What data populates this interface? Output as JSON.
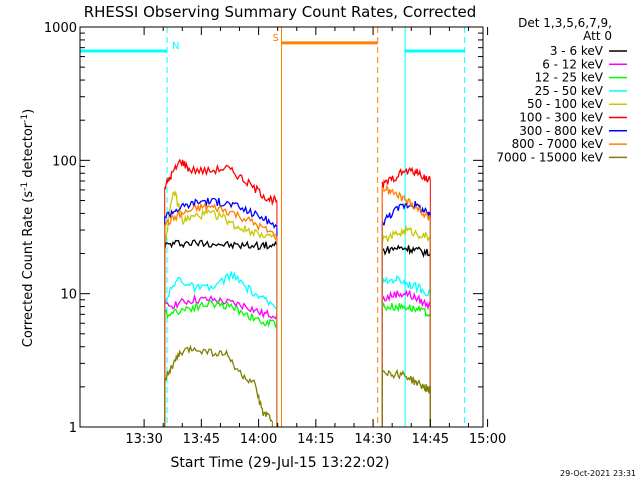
{
  "chart_data": {
    "type": "line",
    "title": "RHESSI Observing Summary Count Rates, Corrected",
    "xlabel": "Start Time (29-Jul-15 13:22:02)",
    "ylabel_main": "Corrected Count Rate (s",
    "ylabel_sup1": "-1",
    "ylabel_mid": " detector",
    "ylabel_sup2": "-1",
    "ylabel_end": ")",
    "yscale": "log",
    "ylim": [
      1,
      1000
    ],
    "xlim_minutes": [
      13.22,
      14.98
    ],
    "x_ticks": [
      "13:30",
      "13:45",
      "14:00",
      "14:15",
      "14:30",
      "14:45",
      "15:00"
    ],
    "x_tick_hours": [
      13.5,
      13.75,
      14.0,
      14.25,
      14.5,
      14.75,
      15.0
    ],
    "y_ticks": [
      "1",
      "10",
      "100",
      "1000"
    ],
    "y_tick_values": [
      1,
      10,
      100,
      1000
    ],
    "legend_header": [
      "Det 1,3,5,6,7,9,",
      "Att 0"
    ],
    "series": [
      {
        "name": "3 - 6 keV",
        "color": "#000000",
        "segments": [
          [
            [
              13.59,
              23
            ],
            [
              13.65,
              24
            ],
            [
              13.72,
              24
            ],
            [
              13.8,
              24
            ],
            [
              13.88,
              23
            ],
            [
              13.95,
              23
            ],
            [
              14.02,
              23
            ],
            [
              14.08,
              23
            ]
          ],
          [
            [
              14.54,
              21
            ],
            [
              14.6,
              22
            ],
            [
              14.65,
              22
            ],
            [
              14.7,
              21
            ],
            [
              14.75,
              20
            ]
          ]
        ]
      },
      {
        "name": "6 - 12 keV",
        "color": "#ff00ff",
        "segments": [
          [
            [
              13.59,
              8
            ],
            [
              13.65,
              8.5
            ],
            [
              13.72,
              9
            ],
            [
              13.8,
              9
            ],
            [
              13.88,
              8.5
            ],
            [
              13.95,
              8
            ],
            [
              14.02,
              7
            ],
            [
              14.08,
              7
            ]
          ],
          [
            [
              14.54,
              9
            ],
            [
              14.6,
              10
            ],
            [
              14.65,
              10
            ],
            [
              14.7,
              9
            ],
            [
              14.75,
              8
            ]
          ]
        ]
      },
      {
        "name": "12 - 25 keV",
        "color": "#00ff00",
        "segments": [
          [
            [
              13.59,
              7
            ],
            [
              13.65,
              7.5
            ],
            [
              13.72,
              8
            ],
            [
              13.8,
              8.5
            ],
            [
              13.88,
              8
            ],
            [
              13.95,
              7
            ],
            [
              14.02,
              6
            ],
            [
              14.08,
              6
            ]
          ],
          [
            [
              14.54,
              8
            ],
            [
              14.6,
              8
            ],
            [
              14.65,
              8
            ],
            [
              14.7,
              7.5
            ],
            [
              14.75,
              7
            ]
          ]
        ]
      },
      {
        "name": "25 - 50 keV",
        "color": "#00ffff",
        "segments": [
          [
            [
              13.59,
              9
            ],
            [
              13.65,
              13
            ],
            [
              13.72,
              11
            ],
            [
              13.8,
              11
            ],
            [
              13.88,
              14
            ],
            [
              13.95,
              11
            ],
            [
              14.02,
              9
            ],
            [
              14.08,
              8
            ]
          ],
          [
            [
              14.54,
              12
            ],
            [
              14.6,
              13
            ],
            [
              14.65,
              12
            ],
            [
              14.7,
              11
            ],
            [
              14.75,
              10
            ]
          ]
        ]
      },
      {
        "name": "50 - 100 keV",
        "color": "#c8c800",
        "segments": [
          [
            [
              13.59,
              24
            ],
            [
              13.63,
              60
            ],
            [
              13.67,
              35
            ],
            [
              13.72,
              38
            ],
            [
              13.78,
              40
            ],
            [
              13.84,
              38
            ],
            [
              13.9,
              32
            ],
            [
              13.95,
              30
            ],
            [
              14.02,
              28
            ],
            [
              14.08,
              26
            ]
          ],
          [
            [
              14.54,
              25
            ],
            [
              14.6,
              28
            ],
            [
              14.65,
              30
            ],
            [
              14.7,
              28
            ],
            [
              14.75,
              26
            ]
          ]
        ]
      },
      {
        "name": "100 - 300 keV",
        "color": "#ff0000",
        "segments": [
          [
            [
              13.59,
              63
            ],
            [
              13.62,
              78
            ],
            [
              13.66,
              100
            ],
            [
              13.7,
              85
            ],
            [
              13.78,
              83
            ],
            [
              13.86,
              88
            ],
            [
              13.92,
              75
            ],
            [
              13.98,
              62
            ],
            [
              14.04,
              52
            ],
            [
              14.08,
              50
            ]
          ],
          [
            [
              14.54,
              65
            ],
            [
              14.58,
              72
            ],
            [
              14.63,
              82
            ],
            [
              14.68,
              83
            ],
            [
              14.72,
              76
            ],
            [
              14.75,
              70
            ]
          ]
        ]
      },
      {
        "name": "300 - 800 keV",
        "color": "#0000ff",
        "segments": [
          [
            [
              13.59,
              38
            ],
            [
              13.64,
              43
            ],
            [
              13.7,
              47
            ],
            [
              13.76,
              50
            ],
            [
              13.82,
              49
            ],
            [
              13.88,
              47
            ],
            [
              13.95,
              42
            ],
            [
              14.02,
              37
            ],
            [
              14.08,
              32
            ]
          ],
          [
            [
              14.54,
              34
            ],
            [
              14.58,
              40
            ],
            [
              14.63,
              46
            ],
            [
              14.68,
              47
            ],
            [
              14.72,
              42
            ],
            [
              14.75,
              38
            ]
          ]
        ]
      },
      {
        "name": "800 - 7000 keV",
        "color": "#ff8000",
        "segments": [
          [
            [
              13.59,
              33
            ],
            [
              13.64,
              38
            ],
            [
              13.7,
              42
            ],
            [
              13.76,
              45
            ],
            [
              13.82,
              44
            ],
            [
              13.88,
              41
            ],
            [
              13.95,
              36
            ],
            [
              14.02,
              31
            ],
            [
              14.08,
              27
            ]
          ],
          [
            [
              14.54,
              62
            ],
            [
              14.58,
              58
            ],
            [
              14.63,
              52
            ],
            [
              14.68,
              46
            ],
            [
              14.72,
              40
            ],
            [
              14.75,
              36
            ]
          ]
        ]
      },
      {
        "name": "7000 - 15000 keV",
        "color": "#808000",
        "segments": [
          [
            [
              13.59,
              2.3
            ],
            [
              13.62,
              2.8
            ],
            [
              13.66,
              3.6
            ],
            [
              13.72,
              3.9
            ],
            [
              13.8,
              3.6
            ],
            [
              13.86,
              3.5
            ],
            [
              13.92,
              2.5
            ],
            [
              13.98,
              2.1
            ],
            [
              14.02,
              1.3
            ],
            [
              14.06,
              1.1
            ]
          ],
          [
            [
              14.54,
              2.7
            ],
            [
              14.58,
              2.5
            ],
            [
              14.63,
              2.5
            ],
            [
              14.68,
              2.2
            ],
            [
              14.72,
              2.0
            ],
            [
              14.75,
              1.9
            ]
          ]
        ]
      }
    ],
    "flags": [
      {
        "label": "",
        "color": "#00ffff",
        "start": 13.22,
        "end": 13.6,
        "value": 660
      },
      {
        "label": "N",
        "color": "#00ffff",
        "start": 13.6,
        "end": 13.6,
        "value": 660
      },
      {
        "label": "S",
        "color": "#ff8000",
        "start": 14.1,
        "end": 14.52,
        "value": 760
      },
      {
        "label": "",
        "color": "#00ffff",
        "start": 14.64,
        "end": 14.9,
        "value": 660
      }
    ],
    "vlines": [
      {
        "hour": 13.22,
        "color": "#00ffff",
        "style": "solid"
      },
      {
        "hour": 13.6,
        "color": "#00ffff",
        "style": "dash"
      },
      {
        "hour": 14.1,
        "color": "#ff8000",
        "style": "solid"
      },
      {
        "hour": 14.52,
        "color": "#ff8000",
        "style": "dash"
      },
      {
        "hour": 14.64,
        "color": "#00ffff",
        "style": "solid"
      },
      {
        "hour": 14.9,
        "color": "#00ffff",
        "style": "dash"
      }
    ],
    "timestamp": "29-Oct-2021 23:31"
  }
}
